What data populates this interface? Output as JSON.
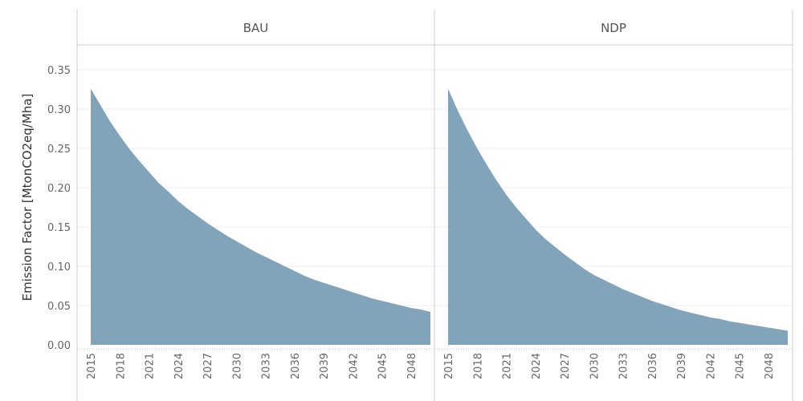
{
  "chart_data": {
    "type": "area",
    "ylabel": "Emission Factor [MtonCO2eq/Mha]",
    "ylim": [
      0,
      0.35
    ],
    "yticks": [
      "0.00",
      "0.05",
      "0.10",
      "0.15",
      "0.20",
      "0.25",
      "0.30",
      "0.35"
    ],
    "xticks": [
      "2015",
      "2018",
      "2021",
      "2024",
      "2027",
      "2030",
      "2033",
      "2036",
      "2039",
      "2042",
      "2045",
      "2048"
    ],
    "xlim": [
      2015,
      2050
    ],
    "color": "#82a4ba",
    "grid": true,
    "panels": [
      {
        "title": "BAU",
        "x": [
          2015,
          2016,
          2017,
          2018,
          2019,
          2020,
          2021,
          2022,
          2023,
          2024,
          2025,
          2026,
          2027,
          2028,
          2029,
          2030,
          2031,
          2032,
          2033,
          2034,
          2035,
          2036,
          2037,
          2038,
          2039,
          2040,
          2041,
          2042,
          2043,
          2044,
          2045,
          2046,
          2047,
          2048,
          2049,
          2050
        ],
        "values": [
          0.326,
          0.305,
          0.284,
          0.266,
          0.249,
          0.234,
          0.22,
          0.206,
          0.195,
          0.183,
          0.173,
          0.164,
          0.155,
          0.147,
          0.139,
          0.132,
          0.125,
          0.118,
          0.112,
          0.106,
          0.1,
          0.094,
          0.088,
          0.083,
          0.079,
          0.075,
          0.071,
          0.067,
          0.063,
          0.059,
          0.056,
          0.053,
          0.05,
          0.047,
          0.045,
          0.042
        ]
      },
      {
        "title": "NDP",
        "x": [
          2015,
          2016,
          2017,
          2018,
          2019,
          2020,
          2021,
          2022,
          2023,
          2024,
          2025,
          2026,
          2027,
          2028,
          2029,
          2030,
          2031,
          2032,
          2033,
          2034,
          2035,
          2036,
          2037,
          2038,
          2039,
          2040,
          2041,
          2042,
          2043,
          2044,
          2045,
          2046,
          2047,
          2048,
          2049,
          2050
        ],
        "values": [
          0.326,
          0.298,
          0.273,
          0.25,
          0.229,
          0.209,
          0.191,
          0.175,
          0.161,
          0.147,
          0.135,
          0.125,
          0.115,
          0.106,
          0.097,
          0.089,
          0.083,
          0.077,
          0.071,
          0.066,
          0.061,
          0.056,
          0.052,
          0.048,
          0.044,
          0.041,
          0.038,
          0.035,
          0.033,
          0.03,
          0.028,
          0.026,
          0.024,
          0.022,
          0.02,
          0.018
        ]
      }
    ]
  }
}
